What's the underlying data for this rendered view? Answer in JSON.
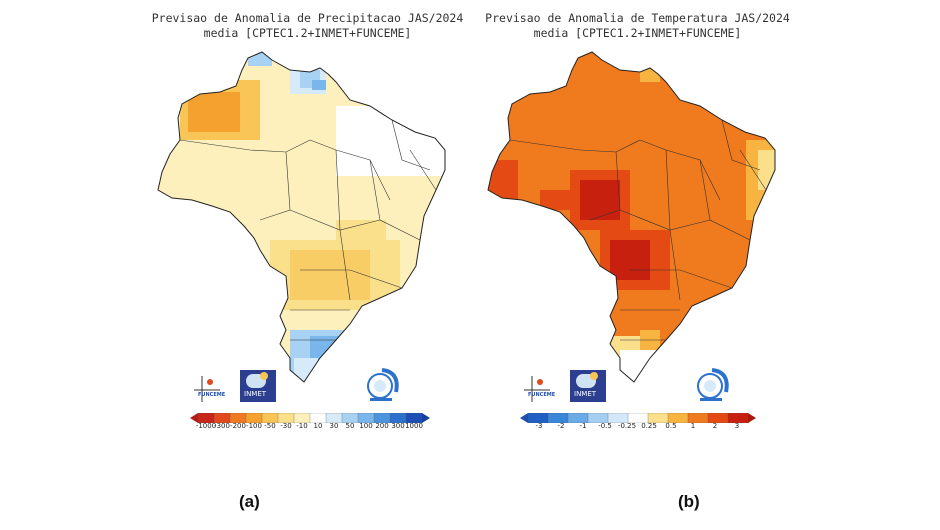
{
  "panels": [
    {
      "id": "a",
      "title_line1": "Previsao de Anomalia de Precipitacao JAS/2024",
      "title_line2": "media [CPTEC1.2+INMET+FUNCEME]",
      "caption": "(a)",
      "colorbar_labels": [
        "-1000",
        "-300",
        "-200",
        "-100",
        "-50",
        "-30",
        "-10",
        "10",
        "30",
        "50",
        "100",
        "200",
        "300",
        "1000"
      ],
      "colorbar_colors": [
        "#c8261b",
        "#e04a1c",
        "#ee7a23",
        "#f4a12f",
        "#f8c556",
        "#fbe08c",
        "#fdf0bd",
        "#ffffff",
        "#d6eafa",
        "#a8d2f4",
        "#79b6eb",
        "#4c95de",
        "#2c72cc",
        "#1e4fb4"
      ],
      "logos": [
        "FUNCEME",
        "INMET",
        "WMO-RCC"
      ]
    },
    {
      "id": "b",
      "title_line1": "Previsao de Anomalia de Temperatura JAS/2024",
      "title_line2": "media [CPTEC1.2+INMET+FUNCEME]",
      "caption": "(b)",
      "colorbar_labels": [
        "-3",
        "-2",
        "-1",
        "-0.5",
        "-0.25",
        "0.25",
        "0.5",
        "1",
        "2",
        "3"
      ],
      "colorbar_colors": [
        "#1e5fc4",
        "#3a86d8",
        "#6aaae6",
        "#a6cdf2",
        "#d4e8fa",
        "#ffffff",
        "#fbe08c",
        "#f8b440",
        "#f07a1e",
        "#e34a14",
        "#c8200f"
      ],
      "logos": [
        "FUNCEME",
        "INMET",
        "WMO-RCC"
      ]
    }
  ],
  "logo_text": {
    "funceme": "FUNCEME",
    "inmet": "INMET"
  }
}
